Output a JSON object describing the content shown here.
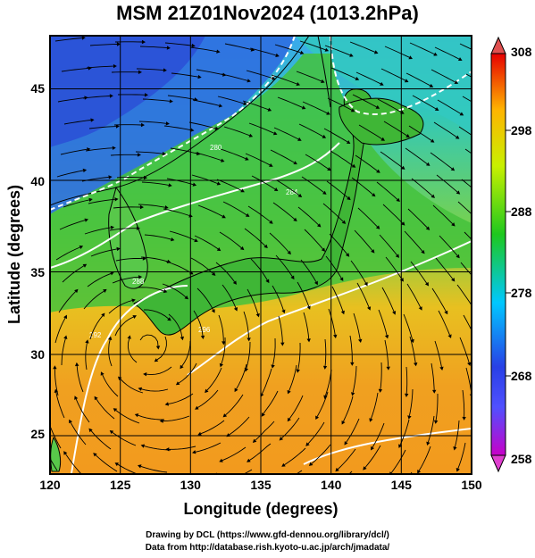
{
  "title": "MSM 21Z01Nov2024 (1013.2hPa)",
  "credits": [
    "Drawing by DCL (https://www.gfd-dennou.org/library/dcl/)",
    "Data from http://database.rish.kyoto-u.ac.jp/arch/jmadata/"
  ],
  "map": {
    "x_ticks": [
      "120",
      "125",
      "130",
      "135",
      "140",
      "145",
      "150"
    ],
    "y_ticks": [
      "25",
      "30",
      "35",
      "40",
      "45"
    ],
    "xlabel": "Longitude (degrees)",
    "ylabel": "Latitude  (degrees)",
    "lon_range": [
      120,
      150
    ],
    "lat_range": [
      22.4,
      47.6
    ],
    "contour_labels": [
      "276",
      "280",
      "284",
      "288",
      "292",
      "296"
    ]
  },
  "colorbar": {
    "ticks": [
      "308",
      "298",
      "288",
      "278",
      "268",
      "258"
    ],
    "range": [
      258,
      308
    ],
    "colors": [
      "#c800c8",
      "#3232ff",
      "#00c8ff",
      "#1ec81e",
      "#c8f000",
      "#ffc800",
      "#ff6414",
      "#e60000"
    ]
  }
}
